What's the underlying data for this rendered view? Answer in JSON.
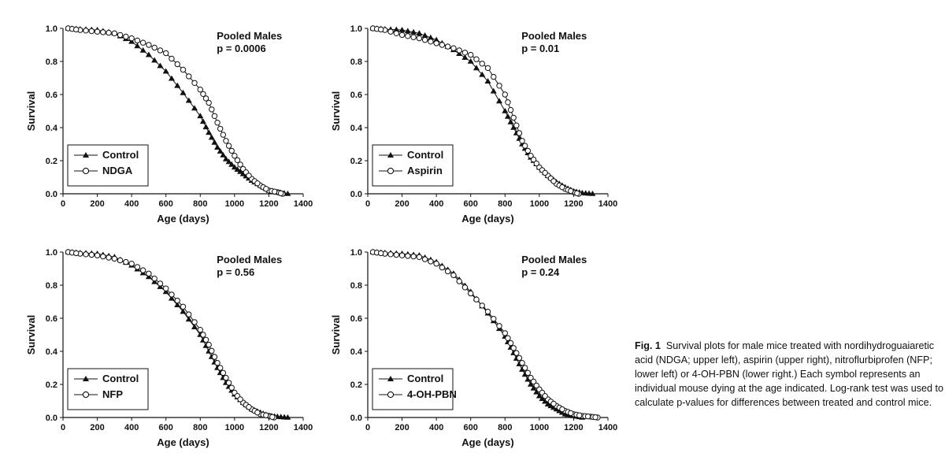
{
  "figure": {
    "caption_label": "Fig. 1",
    "caption_text": "Survival plots for male mice treated with nordihydroguaiaretic acid (NDGA; upper left), aspirin (upper right), nitroflurbiprofen (NFP; lower left) or 4-OH-PBN (lower right.) Each symbol represents an individual mouse dying at the age indicated. Log-rank test was used to calculate p-values for differences between treated and control mice."
  },
  "chart_data": [
    {
      "type": "line",
      "position": "upper-left",
      "annotation_title": "Pooled Males",
      "annotation_p": "p = 0.0006",
      "xlabel": "Age (days)",
      "ylabel": "Survival",
      "xlim": [
        0,
        1400
      ],
      "ylim": [
        0,
        1.0
      ],
      "xticks": [
        "0",
        "200",
        "400",
        "600",
        "800",
        "1000",
        "1200",
        "1400"
      ],
      "yticks": [
        "0.0",
        "0.2",
        "0.4",
        "0.6",
        "0.8",
        "1.0"
      ],
      "legend_position": "bottom-left",
      "series": [
        {
          "name": "Control",
          "marker": "filled-triangle",
          "x": [
            30,
            100,
            200,
            300,
            400,
            500,
            600,
            700,
            800,
            850,
            900,
            950,
            1000,
            1050,
            1100,
            1150,
            1200,
            1250,
            1310
          ],
          "y": [
            1.0,
            0.995,
            0.99,
            0.97,
            0.92,
            0.84,
            0.74,
            0.61,
            0.47,
            0.37,
            0.28,
            0.21,
            0.16,
            0.12,
            0.08,
            0.05,
            0.02,
            0.008,
            0.0
          ]
        },
        {
          "name": "NDGA",
          "marker": "open-circle",
          "x": [
            30,
            100,
            200,
            300,
            400,
            500,
            600,
            700,
            800,
            850,
            900,
            950,
            1000,
            1050,
            1100,
            1150,
            1200,
            1250,
            1280
          ],
          "y": [
            1.0,
            0.99,
            0.98,
            0.97,
            0.94,
            0.9,
            0.85,
            0.75,
            0.63,
            0.55,
            0.43,
            0.32,
            0.23,
            0.15,
            0.09,
            0.05,
            0.02,
            0.01,
            0.0
          ]
        }
      ]
    },
    {
      "type": "line",
      "position": "upper-right",
      "annotation_title": "Pooled Males",
      "annotation_p": "p = 0.01",
      "xlabel": "Age (days)",
      "ylabel": "Survival",
      "xlim": [
        0,
        1400
      ],
      "ylim": [
        0,
        1.0
      ],
      "xticks": [
        "0",
        "200",
        "400",
        "600",
        "800",
        "1000",
        "1200",
        "1400"
      ],
      "yticks": [
        "0.0",
        "0.2",
        "0.4",
        "0.6",
        "0.8",
        "1.0"
      ],
      "legend_position": "bottom-left",
      "series": [
        {
          "name": "Control",
          "marker": "filled-triangle",
          "x": [
            30,
            100,
            200,
            300,
            400,
            500,
            600,
            700,
            800,
            850,
            900,
            950,
            1000,
            1050,
            1100,
            1150,
            1200,
            1250,
            1310
          ],
          "y": [
            1.0,
            0.995,
            0.99,
            0.97,
            0.93,
            0.87,
            0.8,
            0.68,
            0.5,
            0.4,
            0.3,
            0.22,
            0.16,
            0.11,
            0.07,
            0.04,
            0.015,
            0.005,
            0.0
          ]
        },
        {
          "name": "Aspirin",
          "marker": "open-circle",
          "x": [
            30,
            100,
            200,
            300,
            400,
            500,
            600,
            700,
            800,
            850,
            900,
            950,
            1000,
            1050,
            1100,
            1150,
            1200,
            1230
          ],
          "y": [
            1.0,
            0.99,
            0.96,
            0.94,
            0.91,
            0.88,
            0.84,
            0.76,
            0.6,
            0.46,
            0.32,
            0.23,
            0.16,
            0.11,
            0.06,
            0.03,
            0.01,
            0.0
          ]
        }
      ]
    },
    {
      "type": "line",
      "position": "lower-left",
      "annotation_title": "Pooled Males",
      "annotation_p": "p = 0.56",
      "xlabel": "Age (days)",
      "ylabel": "Survival",
      "xlim": [
        0,
        1400
      ],
      "ylim": [
        0,
        1.0
      ],
      "xticks": [
        "0",
        "200",
        "400",
        "600",
        "800",
        "1000",
        "1200",
        "1400"
      ],
      "yticks": [
        "0.0",
        "0.2",
        "0.4",
        "0.6",
        "0.8",
        "1.0"
      ],
      "legend_position": "bottom-left",
      "series": [
        {
          "name": "Control",
          "marker": "filled-triangle",
          "x": [
            30,
            100,
            200,
            300,
            400,
            500,
            600,
            700,
            800,
            850,
            900,
            950,
            1000,
            1050,
            1100,
            1150,
            1200,
            1250,
            1310
          ],
          "y": [
            1.0,
            0.995,
            0.99,
            0.97,
            0.92,
            0.85,
            0.76,
            0.64,
            0.5,
            0.4,
            0.3,
            0.21,
            0.14,
            0.09,
            0.05,
            0.03,
            0.01,
            0.005,
            0.0
          ]
        },
        {
          "name": "NFP",
          "marker": "open-circle",
          "x": [
            30,
            100,
            200,
            300,
            400,
            500,
            600,
            700,
            800,
            850,
            900,
            950,
            1000,
            1050,
            1100,
            1150,
            1200,
            1230
          ],
          "y": [
            1.0,
            0.99,
            0.98,
            0.96,
            0.93,
            0.87,
            0.78,
            0.67,
            0.53,
            0.44,
            0.33,
            0.24,
            0.15,
            0.09,
            0.05,
            0.02,
            0.01,
            0.0
          ]
        }
      ]
    },
    {
      "type": "line",
      "position": "lower-right",
      "annotation_title": "Pooled Males",
      "annotation_p": "p = 0.24",
      "xlabel": "Age (days)",
      "ylabel": "Survival",
      "xlim": [
        0,
        1400
      ],
      "ylim": [
        0,
        1.0
      ],
      "xticks": [
        "0",
        "200",
        "400",
        "600",
        "800",
        "1000",
        "1200",
        "1400"
      ],
      "yticks": [
        "0.0",
        "0.2",
        "0.4",
        "0.6",
        "0.8",
        "1.0"
      ],
      "legend_position": "bottom-left",
      "series": [
        {
          "name": "Control",
          "marker": "filled-triangle",
          "x": [
            30,
            100,
            200,
            300,
            400,
            500,
            600,
            700,
            800,
            850,
            900,
            950,
            1000,
            1050,
            1100,
            1150,
            1200,
            1250
          ],
          "y": [
            1.0,
            0.995,
            0.99,
            0.98,
            0.94,
            0.87,
            0.76,
            0.63,
            0.49,
            0.39,
            0.29,
            0.2,
            0.13,
            0.08,
            0.05,
            0.02,
            0.01,
            0.0
          ]
        },
        {
          "name": "4-OH-PBN",
          "marker": "open-circle",
          "x": [
            30,
            100,
            200,
            300,
            400,
            500,
            600,
            700,
            800,
            850,
            900,
            950,
            1000,
            1050,
            1100,
            1150,
            1200,
            1250,
            1300,
            1340
          ],
          "y": [
            1.0,
            0.99,
            0.98,
            0.97,
            0.93,
            0.86,
            0.75,
            0.64,
            0.51,
            0.42,
            0.33,
            0.24,
            0.17,
            0.11,
            0.07,
            0.04,
            0.02,
            0.01,
            0.005,
            0.0
          ]
        }
      ]
    }
  ]
}
